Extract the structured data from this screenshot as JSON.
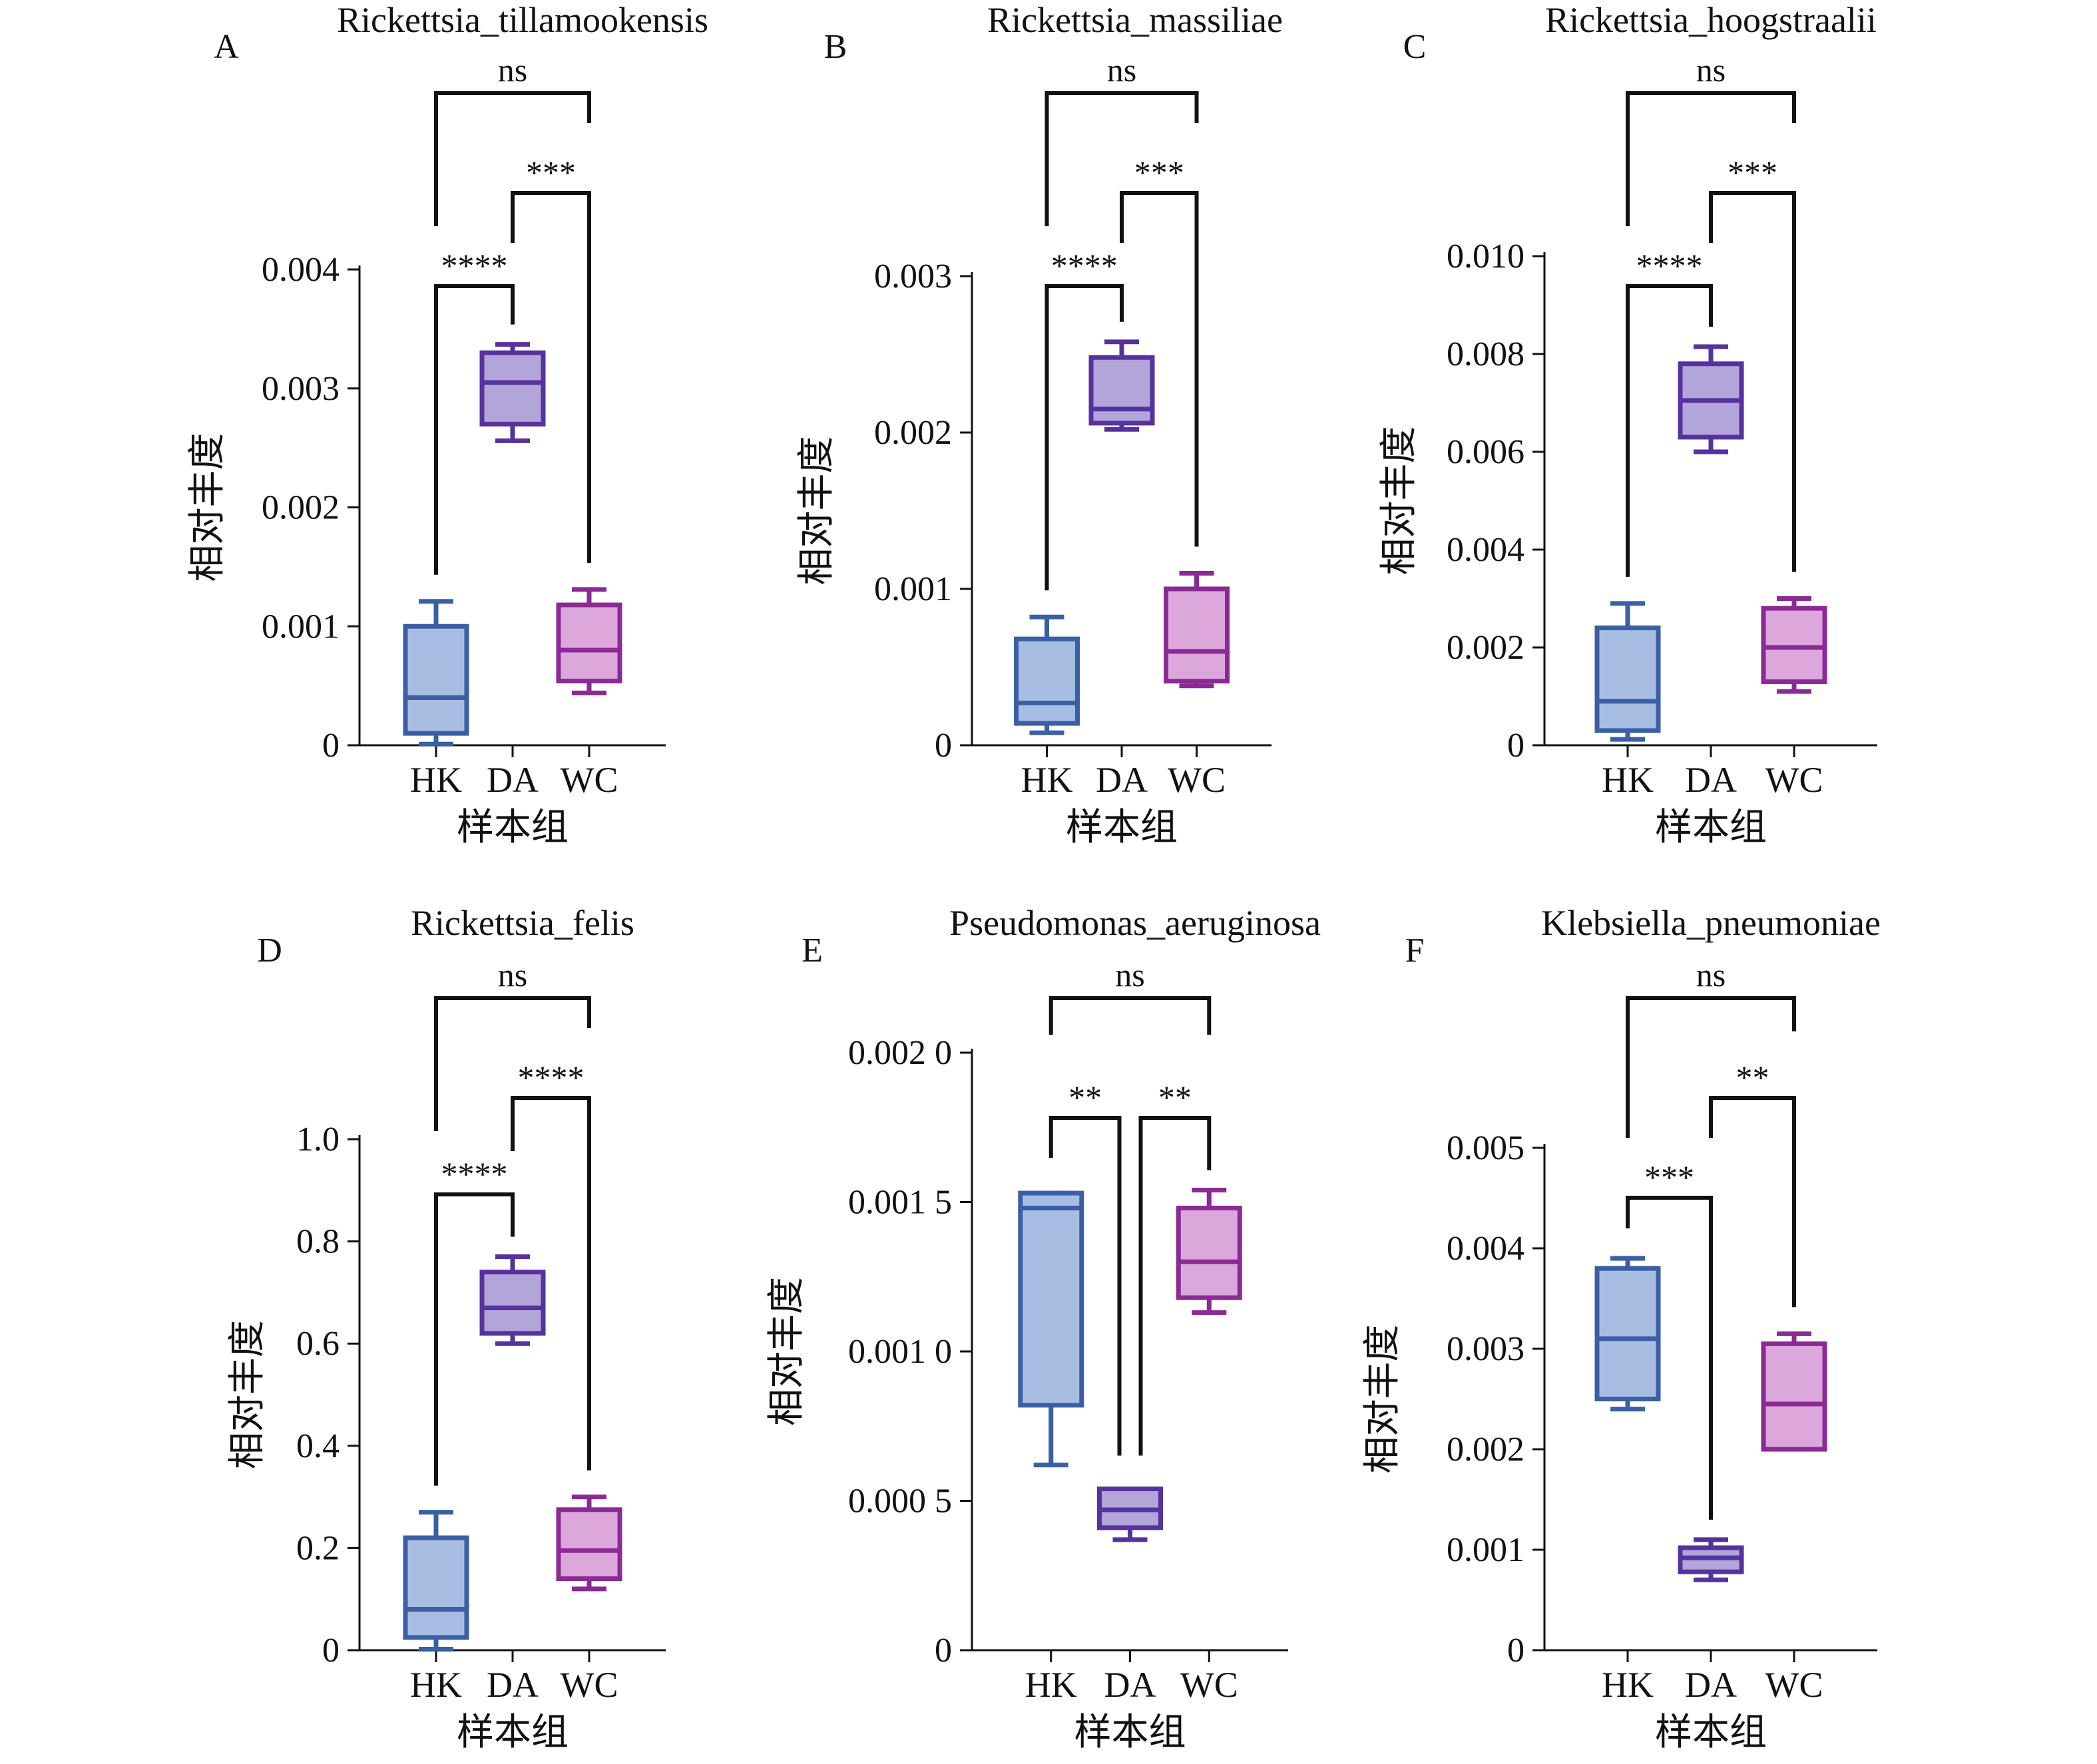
{
  "figure": {
    "colors": {
      "HK": {
        "fill": "#a7bde2",
        "stroke": "#3b5fa5"
      },
      "DA": {
        "fill": "#b2a5da",
        "stroke": "#56329c"
      },
      "WC": {
        "fill": "#dca8dc",
        "stroke": "#8b2a94"
      },
      "axis": "#111111",
      "bracket": "#111111"
    }
  },
  "chart_data": [
    {
      "type": "box",
      "panel_letter": "A",
      "title": "Rickettsia_tillamookensis",
      "xlabel": "样本组",
      "ylabel": "相对丰度",
      "categories": [
        "HK",
        "DA",
        "WC"
      ],
      "ylim": [
        0,
        0.004
      ],
      "yticks": [
        0,
        0.001,
        0.002,
        0.003,
        0.004
      ],
      "ytick_labels": [
        "0",
        "0.001",
        "0.002",
        "0.003",
        "0.004"
      ],
      "boxes": [
        {
          "group": "HK",
          "min": 1e-05,
          "q1": 0.0001,
          "median": 0.0004,
          "q3": 0.001,
          "max": 0.00121
        },
        {
          "group": "DA",
          "min": 0.00256,
          "q1": 0.0027,
          "median": 0.00305,
          "q3": 0.0033,
          "max": 0.00337
        },
        {
          "group": "WC",
          "min": 0.00044,
          "q1": 0.00054,
          "median": 0.0008,
          "q3": 0.00118,
          "max": 0.00131
        }
      ],
      "significance": [
        {
          "pair": [
            "HK",
            "DA"
          ],
          "label": "****"
        },
        {
          "pair": [
            "DA",
            "WC"
          ],
          "label": "***"
        },
        {
          "pair": [
            "HK",
            "WC"
          ],
          "label": "ns"
        }
      ]
    },
    {
      "type": "box",
      "panel_letter": "B",
      "title": "Rickettsia_massiliae",
      "xlabel": "样本组",
      "ylabel": "相对丰度",
      "categories": [
        "HK",
        "DA",
        "WC"
      ],
      "ylim": [
        0,
        0.003
      ],
      "yticks": [
        0,
        0.001,
        0.002,
        0.003
      ],
      "ytick_labels": [
        "0",
        "0.001",
        "0.002",
        "0.003"
      ],
      "boxes": [
        {
          "group": "HK",
          "min": 8e-05,
          "q1": 0.00014,
          "median": 0.00027,
          "q3": 0.00068,
          "max": 0.00082
        },
        {
          "group": "DA",
          "min": 0.00202,
          "q1": 0.00206,
          "median": 0.00215,
          "q3": 0.00248,
          "max": 0.00258
        },
        {
          "group": "WC",
          "min": 0.00038,
          "q1": 0.00041,
          "median": 0.0006,
          "q3": 0.001,
          "max": 0.0011
        }
      ],
      "significance": [
        {
          "pair": [
            "HK",
            "DA"
          ],
          "label": "****"
        },
        {
          "pair": [
            "DA",
            "WC"
          ],
          "label": "***"
        },
        {
          "pair": [
            "HK",
            "WC"
          ],
          "label": "ns"
        }
      ]
    },
    {
      "type": "box",
      "panel_letter": "C",
      "title": "Rickettsia_hoogstraalii",
      "xlabel": "样本组",
      "ylabel": "相对丰度",
      "categories": [
        "HK",
        "DA",
        "WC"
      ],
      "ylim": [
        0,
        0.01
      ],
      "yticks": [
        0,
        0.002,
        0.004,
        0.006,
        0.008,
        0.01
      ],
      "ytick_labels": [
        "0",
        "0.002",
        "0.004",
        "0.006",
        "0.008",
        "0.010"
      ],
      "boxes": [
        {
          "group": "HK",
          "min": 0.00012,
          "q1": 0.0003,
          "median": 0.0009,
          "q3": 0.0024,
          "max": 0.0029
        },
        {
          "group": "DA",
          "min": 0.006,
          "q1": 0.0063,
          "median": 0.00705,
          "q3": 0.0078,
          "max": 0.00815
        },
        {
          "group": "WC",
          "min": 0.0011,
          "q1": 0.0013,
          "median": 0.002,
          "q3": 0.0028,
          "max": 0.003
        }
      ],
      "significance": [
        {
          "pair": [
            "HK",
            "DA"
          ],
          "label": "****"
        },
        {
          "pair": [
            "DA",
            "WC"
          ],
          "label": "***"
        },
        {
          "pair": [
            "HK",
            "WC"
          ],
          "label": "ns"
        }
      ]
    },
    {
      "type": "box",
      "panel_letter": "D",
      "title": "Rickettsia_felis",
      "xlabel": "样本组",
      "ylabel": "相对丰度",
      "categories": [
        "HK",
        "DA",
        "WC"
      ],
      "ylim": [
        0,
        1.0
      ],
      "yticks": [
        0,
        0.2,
        0.4,
        0.6,
        0.8,
        1.0
      ],
      "ytick_labels": [
        "0",
        "0.2",
        "0.4",
        "0.6",
        "0.8",
        "1.0"
      ],
      "boxes": [
        {
          "group": "HK",
          "min": 0.002,
          "q1": 0.025,
          "median": 0.08,
          "q3": 0.22,
          "max": 0.27
        },
        {
          "group": "DA",
          "min": 0.6,
          "q1": 0.62,
          "median": 0.67,
          "q3": 0.74,
          "max": 0.77
        },
        {
          "group": "WC",
          "min": 0.12,
          "q1": 0.14,
          "median": 0.195,
          "q3": 0.275,
          "max": 0.3
        }
      ],
      "significance": [
        {
          "pair": [
            "HK",
            "DA"
          ],
          "label": "****"
        },
        {
          "pair": [
            "DA",
            "WC"
          ],
          "label": "****"
        },
        {
          "pair": [
            "HK",
            "WC"
          ],
          "label": "ns"
        }
      ]
    },
    {
      "type": "box",
      "panel_letter": "E",
      "title": "Pseudomonas_aeruginosa",
      "xlabel": "样本组",
      "ylabel": "相对丰度",
      "categories": [
        "HK",
        "DA",
        "WC"
      ],
      "ylim": [
        0,
        0.002
      ],
      "yticks": [
        0,
        0.0005,
        0.001,
        0.0015,
        0.002
      ],
      "ytick_labels": [
        "0",
        "0.000 5",
        "0.001 0",
        "0.001 5",
        "0.002 0"
      ],
      "boxes": [
        {
          "group": "HK",
          "min": 0.00062,
          "q1": 0.00082,
          "median": 0.00148,
          "q3": 0.00153,
          "max": 0.00153
        },
        {
          "group": "DA",
          "min": 0.00037,
          "q1": 0.00041,
          "median": 0.00047,
          "q3": 0.00054,
          "max": 0.00054
        },
        {
          "group": "WC",
          "min": 0.00113,
          "q1": 0.00118,
          "median": 0.0013,
          "q3": 0.00148,
          "max": 0.00154
        }
      ],
      "significance": [
        {
          "pair": [
            "HK",
            "DA"
          ],
          "label": "**"
        },
        {
          "pair": [
            "DA",
            "WC"
          ],
          "label": "**"
        },
        {
          "pair": [
            "HK",
            "WC"
          ],
          "label": "ns"
        }
      ]
    },
    {
      "type": "box",
      "panel_letter": "F",
      "title": "Klebsiella_pneumoniae",
      "xlabel": "样本组",
      "ylabel": "相对丰度",
      "categories": [
        "HK",
        "DA",
        "WC"
      ],
      "ylim": [
        0,
        0.005
      ],
      "yticks": [
        0,
        0.001,
        0.002,
        0.003,
        0.004,
        0.005
      ],
      "ytick_labels": [
        "0",
        "0.001",
        "0.002",
        "0.003",
        "0.004",
        "0.005"
      ],
      "boxes": [
        {
          "group": "HK",
          "min": 0.0024,
          "q1": 0.0025,
          "median": 0.0031,
          "q3": 0.0038,
          "max": 0.0039
        },
        {
          "group": "DA",
          "min": 0.0007,
          "q1": 0.00078,
          "median": 0.00092,
          "q3": 0.00102,
          "max": 0.0011
        },
        {
          "group": "WC",
          "min": 0.002,
          "q1": 0.002,
          "median": 0.00245,
          "q3": 0.00305,
          "max": 0.00315
        }
      ],
      "significance": [
        {
          "pair": [
            "HK",
            "DA"
          ],
          "label": "***"
        },
        {
          "pair": [
            "DA",
            "WC"
          ],
          "label": "**"
        },
        {
          "pair": [
            "HK",
            "WC"
          ],
          "label": "ns"
        }
      ]
    }
  ]
}
